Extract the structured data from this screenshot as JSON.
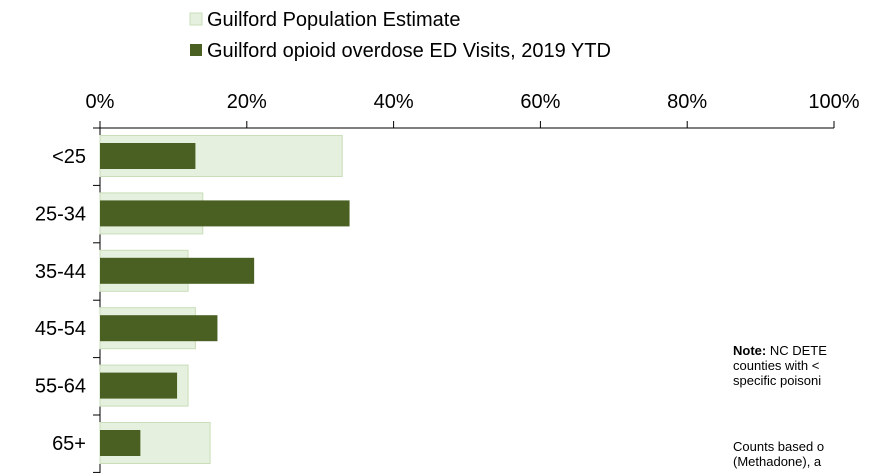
{
  "chart_data": {
    "type": "bar",
    "orientation": "horizontal",
    "categories": [
      "<25",
      "25-34",
      "35-44",
      "45-54",
      "55-64",
      "65+"
    ],
    "series": [
      {
        "name": "Guilford Population Estimate",
        "values": [
          33,
          14,
          12,
          13,
          12,
          15
        ],
        "color": "#e6f0de",
        "stroke": "#c9deb9"
      },
      {
        "name": "Guilford opioid overdose ED Visits, 2019 YTD",
        "values": [
          13,
          34,
          21,
          16,
          10.5,
          5.5
        ],
        "color": "#4a6023"
      }
    ],
    "x_ticks": [
      "0%",
      "20%",
      "40%",
      "60%",
      "80%",
      "100%"
    ],
    "xlim": [
      0,
      100
    ],
    "x_axis_position": "top",
    "legend_position": "top"
  },
  "note": {
    "bold": "Note:",
    "text": " NC DETE\ncounties with <\nspecific poisoni",
    "text2": "Counts based o\n(Methadone), a"
  }
}
